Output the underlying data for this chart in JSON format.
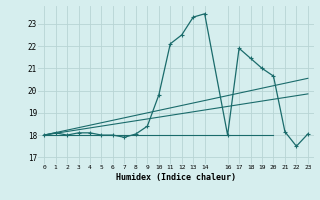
{
  "title": "",
  "xlabel": "Humidex (Indice chaleur)",
  "ylabel": "",
  "bg_color": "#d6eeee",
  "grid_color": "#b8d4d4",
  "line_color": "#1a6b6b",
  "xlim": [
    -0.5,
    23.5
  ],
  "ylim": [
    16.7,
    23.8
  ],
  "yticks": [
    17,
    18,
    19,
    20,
    21,
    22,
    23
  ],
  "xticks": [
    0,
    1,
    2,
    3,
    4,
    5,
    6,
    7,
    8,
    9,
    10,
    11,
    12,
    13,
    14,
    16,
    17,
    18,
    19,
    20,
    21,
    22,
    23
  ],
  "xtick_labels": [
    "0",
    "1",
    "2",
    "3",
    "4",
    "5",
    "6",
    "7",
    "8",
    "9",
    "10",
    "11",
    "12",
    "13",
    "14",
    "16",
    "17",
    "18",
    "19",
    "20",
    "21",
    "22",
    "23"
  ],
  "main_x": [
    0,
    1,
    2,
    3,
    4,
    5,
    6,
    7,
    8,
    9,
    10,
    11,
    12,
    13,
    14,
    16,
    17,
    18,
    19,
    20,
    21,
    22,
    23
  ],
  "main_y": [
    18.0,
    18.1,
    18.0,
    18.1,
    18.1,
    18.0,
    18.0,
    17.9,
    18.05,
    18.4,
    19.8,
    22.1,
    22.5,
    23.3,
    23.45,
    18.0,
    21.9,
    21.45,
    21.0,
    20.65,
    18.15,
    17.5,
    18.05
  ],
  "line1_x": [
    0,
    23
  ],
  "line1_y": [
    18.0,
    20.55
  ],
  "line2_x": [
    0,
    23
  ],
  "line2_y": [
    18.0,
    19.85
  ],
  "line3_x": [
    0,
    20
  ],
  "line3_y": [
    18.0,
    18.0
  ]
}
